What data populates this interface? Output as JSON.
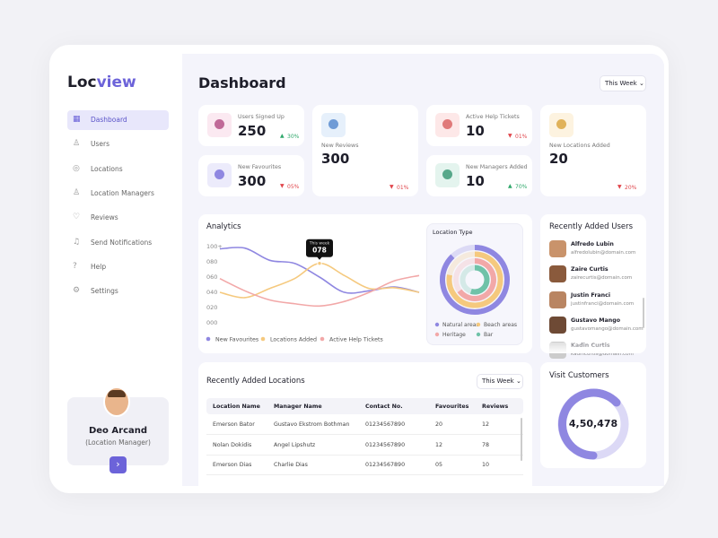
{
  "logo": {
    "part1": "Loc",
    "part2": "view"
  },
  "nav": [
    "Dashboard",
    "Users",
    "Locations",
    "Location Managers",
    "Reviews",
    "Send Notifications",
    "Help",
    "Settings"
  ],
  "profile": {
    "name": "Deo Arcand",
    "role": "(Location Manager)"
  },
  "header": {
    "title": "Dashboard",
    "filter": "This Week"
  },
  "stats": [
    {
      "label": "Users Signed Up",
      "value": 250,
      "change": "30%",
      "trend": "up"
    },
    {
      "label": "New Favourites",
      "value": 300,
      "change": "05%",
      "trend": "down"
    },
    {
      "label": "New Reviews",
      "value": 300,
      "change": "01%",
      "trend": "down"
    },
    {
      "label": "Active Help Tickets",
      "value": 10,
      "change": "01%",
      "trend": "down"
    },
    {
      "label": "New Managers Added",
      "value": 10,
      "change": "70%",
      "trend": "up"
    },
    {
      "label": "New Locations Added",
      "value": 20,
      "change": "20%",
      "trend": "down"
    }
  ],
  "analytics": {
    "type": "line",
    "title": "Analytics",
    "categories": [
      null,
      null,
      null,
      null,
      null,
      null,
      null,
      null,
      null
    ],
    "ylim": [
      0,
      100
    ],
    "yticks": [
      {
        "value": 0,
        "label": "000"
      },
      {
        "value": 20,
        "label": "020"
      },
      {
        "value": 40,
        "label": "040"
      },
      {
        "value": 60,
        "label": "060"
      },
      {
        "value": 80,
        "label": "080"
      },
      {
        "value": 100,
        "label": "100+"
      }
    ],
    "tooltip_title": "This week",
    "series": [
      {
        "name": "New Favourites",
        "color": "#8f87e1",
        "values": [
          97,
          98,
          82,
          78,
          60,
          40,
          42,
          47,
          40
        ]
      },
      {
        "name": "Locations Added",
        "color": "#f5c97e",
        "values": [
          40,
          33,
          45,
          58,
          78,
          62,
          45,
          46,
          40
        ],
        "value_labels": [
          null,
          null,
          null,
          null,
          "078",
          null,
          null,
          null,
          null
        ]
      },
      {
        "name": "Active Help Tickets",
        "color": "#f2a8a8",
        "values": [
          58,
          42,
          30,
          25,
          22,
          28,
          40,
          55,
          62
        ]
      }
    ]
  },
  "location_type": {
    "type": "radial",
    "title": "Location Type",
    "rlim": [
      0,
      100
    ],
    "series": [
      {
        "name": "Natural areas",
        "color": "#8f87e1",
        "value": 88
      },
      {
        "name": "Beach areas",
        "color": "#f5c97e",
        "value": 78
      },
      {
        "name": "Heritage",
        "color": "#f2a8a8",
        "value": 65
      },
      {
        "name": "Bar",
        "color": "#6fc2a8",
        "value": 55
      }
    ]
  },
  "recent_users": {
    "title": "Recently Added  Users",
    "users": [
      {
        "name": "Alfredo Lubin",
        "email": "alfredolubin@domain.com"
      },
      {
        "name": "Zaire Curtis",
        "email": "zairecurtis@domain.com"
      },
      {
        "name": "Justin Franci",
        "email": "justinfranci@domain.com"
      },
      {
        "name": "Gustavo Mango",
        "email": "gustavomango@domain.com"
      },
      {
        "name": "Kadin Curtis",
        "email": "kadincurtis@domain.com"
      }
    ]
  },
  "recent_locations": {
    "title": "Recently Added  Locations",
    "filter": "This Week",
    "columns": [
      "Location Name",
      "Manager Name",
      "Contact No.",
      "Favourites",
      "Reviews"
    ],
    "rows": [
      [
        "Emerson Bator",
        "Gustavo Ekstrom Bothman",
        "01234567890",
        "20",
        "12"
      ],
      [
        "Nolan Dokidis",
        "Angel Lipshutz",
        "01234567890",
        "12",
        "78"
      ],
      [
        "Emerson Dias",
        "Charlie Dias",
        "01234567890",
        "05",
        "10"
      ]
    ]
  },
  "visit_customers": {
    "title": "Visit Customers",
    "value": "4,50,478"
  }
}
